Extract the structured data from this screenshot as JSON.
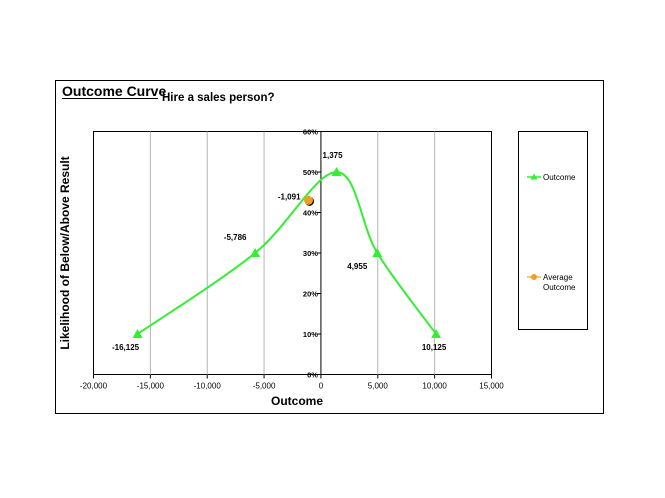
{
  "colors": {
    "series_line": "#33ee33",
    "average_fill": "#f0a020",
    "average_edge": "#000000",
    "gridline": "#b3b3b3",
    "frame": "#000000"
  },
  "chart_data": {
    "type": "scatter",
    "title": "Outcome Curve",
    "subtitle": "Hire a sales person?",
    "xlabel": "Outcome",
    "ylabel": "Likelihood of Below/Above Result",
    "xlim": [
      -20000,
      15000
    ],
    "ylim": [
      0,
      0.6
    ],
    "x_ticks": [
      -20000,
      -15000,
      -10000,
      -5000,
      0,
      5000,
      10000,
      15000
    ],
    "x_tick_labels": [
      "-20,000",
      "-15,000",
      "-10,000",
      "-5,000",
      "0",
      "5,000",
      "10,000",
      "15,000"
    ],
    "y_ticks": [
      0,
      0.1,
      0.2,
      0.3,
      0.4,
      0.5,
      0.6
    ],
    "y_tick_labels": [
      "0%",
      "10%",
      "20%",
      "30%",
      "40%",
      "50%",
      "60%"
    ],
    "grid": "vertical",
    "legend_position": "right",
    "series": [
      {
        "name": "Outcome",
        "marker": "triangle",
        "smooth": true,
        "points": [
          {
            "x": -16125,
            "y": 0.1,
            "label": "-16,125"
          },
          {
            "x": -5786,
            "y": 0.3,
            "label": "-5,786"
          },
          {
            "x": 1375,
            "y": 0.5,
            "label": "1,375"
          },
          {
            "x": 4955,
            "y": 0.3,
            "label": "4,955"
          },
          {
            "x": 10125,
            "y": 0.1,
            "label": "10,125"
          }
        ]
      },
      {
        "name": "Average Outcome",
        "legend_lines": [
          "Average",
          "Outcome"
        ],
        "marker": "circle",
        "points": [
          {
            "x": -1091,
            "y": 0.43,
            "label": "-1,091"
          }
        ]
      }
    ]
  }
}
